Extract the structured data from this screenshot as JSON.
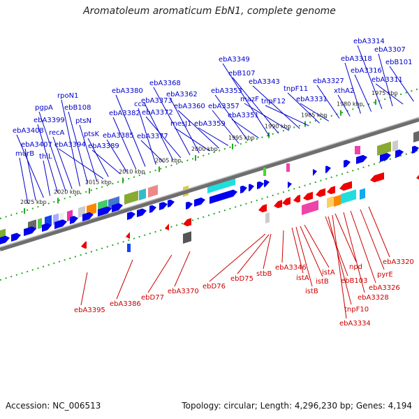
{
  "title": "Aromatoleum aromaticum EbN1, complete genome",
  "footer": {
    "accession": "Accession: NC_006513",
    "summary": "Topology: circular; Length: 4,296,230 bp; Genes: 4,194"
  },
  "colors": {
    "forward_gene": "#0000ee",
    "reverse_gene": "#ee0000",
    "forward_label": "#0000cc",
    "reverse_label": "#cc0000",
    "backbone": "#777777",
    "tick": "#22aa22"
  },
  "axis": {
    "unit": "kbp",
    "ticks": [
      "2025 kbp",
      "2020 kbp",
      "2015 kbp",
      "2010 kbp",
      "2005 kbp",
      "2000 kbp",
      "1995 kbp",
      "1990 kbp",
      "1985 kbp",
      "1980 kbp",
      "1975 kbp"
    ]
  },
  "forward_labels": [
    "murB",
    "ebA3407",
    "ebA3408",
    "thiL",
    "ebA3399",
    "pgpA",
    "recA",
    "rpoN1",
    "ebB108",
    "ptsN",
    "ebA3394",
    "ptsK",
    "ebA3389",
    "ebA3385",
    "ebA3382",
    "ebA3380",
    "cca",
    "ebA3377",
    "ebA3373",
    "ebA3372",
    "ebA3368",
    "ebA3362",
    "mesJ1",
    "ebA3360",
    "ebA3359",
    "ebA3357",
    "ebA3353",
    "ebA3351",
    "ebA3349",
    "ebB107",
    "mazF",
    "ebA3343",
    "tnpF12",
    "tnpF11",
    "ebA3331",
    "ebA3327",
    "xthA2",
    "ebA3318",
    "ebA3316",
    "ebA3314",
    "ebA3307",
    "ebA3311",
    "ebB101"
  ],
  "reverse_labels": [
    "ebA3395",
    "ebA3386",
    "ebD77",
    "ebA3370",
    "ebD76",
    "ebD75",
    "stbB",
    "ebA3346",
    "istA",
    "istB",
    "istB",
    "istA",
    "ebB103",
    "tnpF10",
    "ebA3334",
    "npd",
    "ebA3328",
    "ebA3326",
    "pyrE",
    "ebA3320"
  ]
}
